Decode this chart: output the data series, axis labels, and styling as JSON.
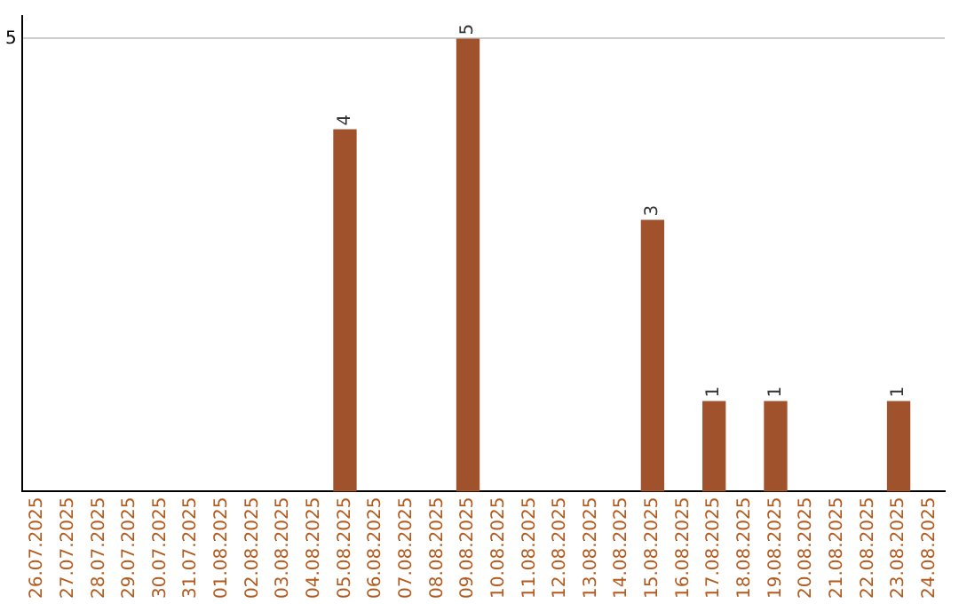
{
  "chart_data": {
    "type": "bar",
    "categories": [
      "26.07.2025",
      "27.07.2025",
      "28.07.2025",
      "29.07.2025",
      "30.07.2025",
      "31.07.2025",
      "01.08.2025",
      "02.08.2025",
      "03.08.2025",
      "04.08.2025",
      "05.08.2025",
      "06.08.2025",
      "07.08.2025",
      "08.08.2025",
      "09.08.2025",
      "10.08.2025",
      "11.08.2025",
      "12.08.2025",
      "13.08.2025",
      "14.08.2025",
      "15.08.2025",
      "16.08.2025",
      "17.08.2025",
      "18.08.2025",
      "19.08.2025",
      "20.08.2025",
      "21.08.2025",
      "22.08.2025",
      "23.08.2025",
      "24.08.2025"
    ],
    "values": [
      0,
      0,
      0,
      0,
      0,
      0,
      0,
      0,
      0,
      0,
      4,
      0,
      0,
      0,
      5,
      0,
      0,
      0,
      0,
      0,
      3,
      0,
      1,
      0,
      1,
      0,
      0,
      0,
      1,
      0
    ],
    "value_labels": [
      null,
      null,
      null,
      null,
      null,
      null,
      null,
      null,
      null,
      null,
      "4",
      null,
      null,
      null,
      "5",
      null,
      null,
      null,
      null,
      null,
      "3",
      null,
      "1",
      null,
      "1",
      null,
      null,
      null,
      "1",
      null
    ],
    "color": "#a0522d",
    "ylim": [
      0,
      5.25
    ],
    "yticks": [
      5
    ],
    "grid": "y",
    "legend": false
  }
}
